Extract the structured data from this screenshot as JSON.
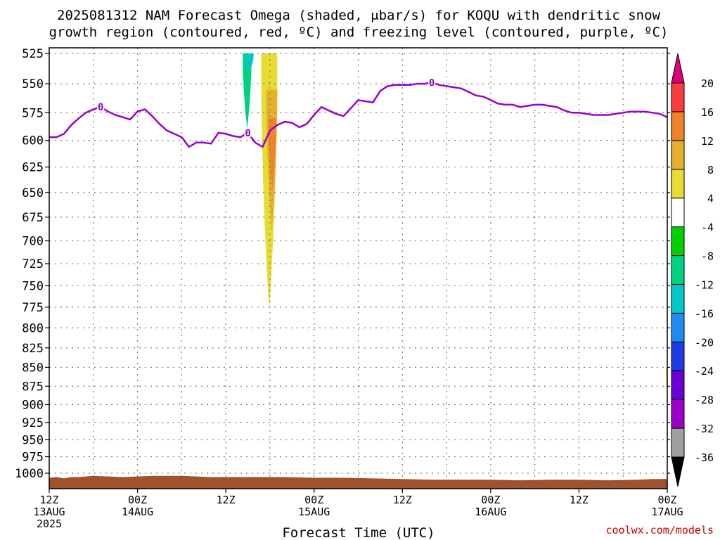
{
  "title_lines": [
    "2025081312 NAM Forecast Omega (shaded, μbar/s) for KOQU with dendritic snow",
    "growth region (contoured, red, ºC) and freezing level (contoured, purple, ºC)"
  ],
  "credit": "coolwx.com/models",
  "colors": {
    "freezing_level": "#9900cc",
    "terrain": "#a0522d",
    "grid": "#777777",
    "credit": "#cc0000"
  },
  "chart_data": {
    "type": "heatmap",
    "xlabel": "Forecast Time (UTC)",
    "ylabel": "",
    "x_units": "forecast hours from 2025-08-13 12Z",
    "xlim": [
      0,
      84
    ],
    "ylim": [
      1000,
      525
    ],
    "y_scale": "log",
    "grid": true,
    "y_ticks": [
      525,
      550,
      575,
      600,
      625,
      650,
      675,
      700,
      725,
      750,
      775,
      800,
      825,
      850,
      875,
      900,
      925,
      950,
      975,
      1000
    ],
    "x_ticks": [
      {
        "hour": 0,
        "lines": [
          "12Z",
          "13AUG",
          "2025"
        ]
      },
      {
        "hour": 12,
        "lines": [
          "00Z",
          "14AUG"
        ]
      },
      {
        "hour": 24,
        "lines": [
          "12Z"
        ]
      },
      {
        "hour": 36,
        "lines": [
          "00Z",
          "15AUG"
        ]
      },
      {
        "hour": 48,
        "lines": [
          "12Z"
        ]
      },
      {
        "hour": 60,
        "lines": [
          "00Z",
          "16AUG"
        ]
      },
      {
        "hour": 72,
        "lines": [
          "12Z"
        ]
      },
      {
        "hour": 84,
        "lines": [
          "00Z",
          "17AUG"
        ]
      }
    ],
    "colorbar": {
      "levels": [
        -36,
        -32,
        -28,
        -24,
        -20,
        -16,
        -12,
        -8,
        -4,
        4,
        8,
        12,
        16,
        20
      ],
      "colors": [
        "#000000",
        "#a0a0a0",
        "#9a00c8",
        "#6a00d8",
        "#1e3ce6",
        "#1e8cf0",
        "#00c8c8",
        "#00d282",
        "#00d200",
        "#ffffff",
        "#e6dc32",
        "#e6af2d",
        "#f08228",
        "#fa3c3c",
        "#dc0078"
      ]
    },
    "freezing_level": {
      "label": "0",
      "hours": [
        0,
        1,
        2,
        3,
        4,
        5,
        6,
        7,
        8,
        9,
        10,
        11,
        12,
        13,
        14,
        15,
        16,
        17,
        18,
        19,
        20,
        21,
        22,
        23,
        24,
        25,
        26,
        27,
        28,
        29,
        30,
        31,
        32,
        33,
        34,
        35,
        36,
        37,
        38,
        39,
        40,
        41,
        42,
        43,
        44,
        45,
        46,
        47,
        48,
        49,
        50,
        51,
        52,
        53,
        54,
        55,
        56,
        57,
        58,
        59,
        60,
        61,
        62,
        63,
        64,
        65,
        66,
        67,
        68,
        69,
        70,
        71,
        72,
        73,
        74,
        75,
        76,
        77,
        78,
        79,
        80,
        81,
        82,
        83,
        84
      ],
      "pressure": [
        597,
        597,
        594,
        586,
        580,
        575,
        572,
        570,
        574,
        577,
        579,
        581,
        574,
        572,
        578,
        585,
        591,
        594,
        597,
        606,
        602,
        602,
        603,
        593,
        594,
        596,
        597,
        593,
        602,
        606,
        591,
        586,
        583,
        584,
        588,
        585,
        577,
        570,
        573,
        576,
        578,
        571,
        564,
        565,
        566,
        556,
        552,
        551,
        551,
        551,
        550,
        550,
        549,
        551,
        552,
        553,
        554,
        557,
        560,
        561,
        564,
        567,
        568,
        568,
        570,
        569,
        568,
        568,
        569,
        570,
        573,
        575,
        575,
        576,
        577,
        577,
        577,
        576,
        575,
        574,
        574,
        574,
        575,
        576,
        579
      ]
    },
    "omega_regions": [
      {
        "sign": "negative",
        "level": -8,
        "hour_start": 26.3,
        "hour_end": 27.5,
        "p_top": 525,
        "p_bottom": 590
      },
      {
        "sign": "negative",
        "level": -12,
        "hour_start": 26.6,
        "hour_end": 27.8,
        "p_top": 525,
        "p_bottom": 540
      },
      {
        "sign": "positive",
        "level": 4,
        "hour_start": 28.8,
        "hour_end": 31.0,
        "p_top": 525,
        "p_bottom": 780
      },
      {
        "sign": "positive",
        "level": 8,
        "hour_start": 29.5,
        "hour_end": 31.0,
        "p_top": 555,
        "p_bottom": 690
      },
      {
        "sign": "positive",
        "level": 12,
        "hour_start": 29.8,
        "hour_end": 30.8,
        "p_top": 580,
        "p_bottom": 650
      },
      {
        "sign": "positive",
        "level": 4,
        "hour_start": 83.8,
        "hour_end": 84,
        "p_top": 850,
        "p_bottom": 885
      }
    ],
    "terrain_top": {
      "hours": [
        0,
        1,
        2,
        3,
        4,
        5,
        6,
        8,
        10,
        12,
        14,
        16,
        18,
        20,
        22,
        24,
        28,
        32,
        36,
        40,
        44,
        48,
        52,
        56,
        60,
        64,
        68,
        72,
        76,
        80,
        82,
        84
      ],
      "pressure": [
        1007,
        1006,
        1008,
        1006,
        1006,
        1005,
        1004,
        1005,
        1006,
        1005,
        1004,
        1004,
        1004,
        1005,
        1006,
        1006,
        1006,
        1006,
        1007,
        1007,
        1008,
        1009,
        1010,
        1010,
        1010,
        1011,
        1010,
        1010,
        1011,
        1010,
        1009,
        1009
      ]
    }
  }
}
